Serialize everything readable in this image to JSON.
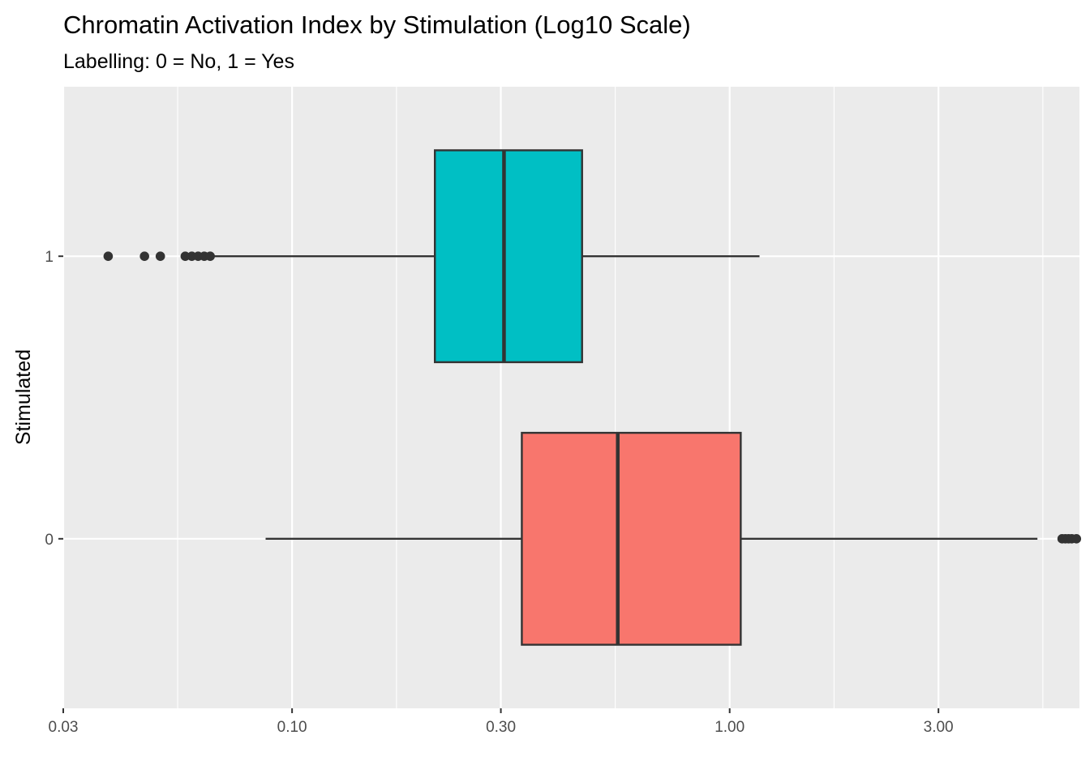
{
  "chart_data": {
    "type": "boxplot",
    "title": "Chromatin Activation Index by Stimulation (Log10 Scale)",
    "subtitle": "Labelling: 0 = No, 1 = Yes",
    "xlabel": "",
    "ylabel": "Stimulated",
    "x_scale": "log10",
    "xlim": [
      0.03,
      6.3
    ],
    "x_ticks": [
      0.03,
      0.1,
      0.3,
      1.0,
      3.0
    ],
    "x_tick_labels": [
      "0.03",
      "0.10",
      "0.30",
      "1.00",
      "3.00"
    ],
    "categories": [
      "0",
      "1"
    ],
    "grid": true,
    "legend": "none",
    "boxes": [
      {
        "category": "0",
        "color": "#F8766D",
        "whisker_low": 0.087,
        "q1": 0.335,
        "median": 0.555,
        "q3": 1.06,
        "whisker_high": 5.05,
        "outliers": [
          5.75,
          5.85,
          5.95,
          6.05,
          6.2
        ]
      },
      {
        "category": "1",
        "color": "#00BFC4",
        "whisker_low": 0.065,
        "q1": 0.212,
        "median": 0.305,
        "q3": 0.46,
        "whisker_high": 1.17,
        "outliers": [
          0.038,
          0.046,
          0.05,
          0.057,
          0.059,
          0.061,
          0.063,
          0.065
        ]
      }
    ]
  }
}
